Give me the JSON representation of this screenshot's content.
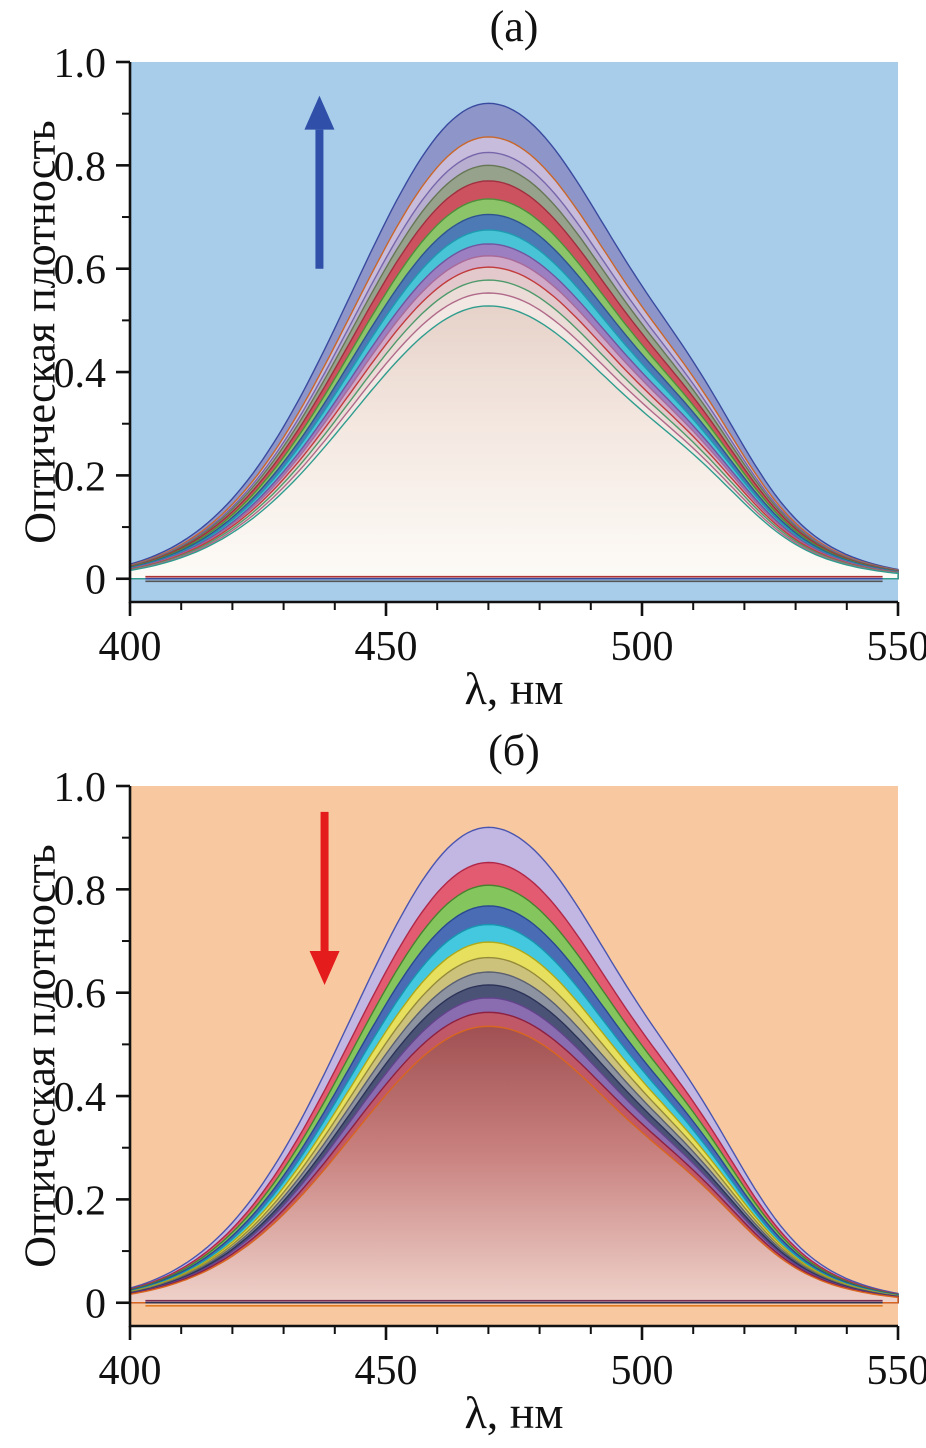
{
  "figure": {
    "description": "Two absorption spectra panels"
  },
  "charts": [
    {
      "id": "a",
      "title": "(а)",
      "ylabel": "Оптическая плотность",
      "xlabel": "λ, нм",
      "plot_bg": "#a7cdeb",
      "inner_gradient": {
        "top": "#e6d2c9",
        "mid": "#f4e8e1",
        "bottom": "#fdfbf7"
      },
      "arrow": {
        "direction": "up",
        "color": "#2f4fa8",
        "x_nm": 437,
        "from_od": 0.6,
        "to_od": 0.935
      },
      "axes": {
        "xlim": [
          400,
          550
        ],
        "ylim": [
          -0.045,
          1.0
        ],
        "x_ticks": [
          {
            "v": 400,
            "label": "400"
          },
          {
            "v": 450,
            "label": "450"
          },
          {
            "v": 500,
            "label": "500"
          },
          {
            "v": 550,
            "label": "550"
          }
        ],
        "y_ticks": [
          {
            "v": 0,
            "label": "0"
          },
          {
            "v": 0.2,
            "label": "0.2"
          },
          {
            "v": 0.4,
            "label": "0.4"
          },
          {
            "v": 0.6,
            "label": "0.6"
          },
          {
            "v": 0.8,
            "label": "0.8"
          },
          {
            "v": 1.0,
            "label": "1.0"
          }
        ],
        "x_minor_step": 10,
        "y_minor_step": 0.1
      },
      "chart_data": {
        "type": "line",
        "x_unit": "нм",
        "xlabel": "λ, нм",
        "ylabel": "Оптическая плотность",
        "peak_nm": 470,
        "shoulder_nm": 512,
        "trend": "absorbance increasing (upward arrow)",
        "series": [
          {
            "name": "spectrum-01",
            "peak_od": 0.92,
            "stroke": "#3a4a9f",
            "fill": "#8e96c9"
          },
          {
            "name": "spectrum-02",
            "peak_od": 0.855,
            "stroke": "#c9662a",
            "fill": "#c7bcdc"
          },
          {
            "name": "spectrum-03",
            "peak_od": 0.825,
            "stroke": "#7766aa",
            "fill": "#b7aed0"
          },
          {
            "name": "spectrum-04",
            "peak_od": 0.8,
            "stroke": "#667755",
            "fill": "#96a28c"
          },
          {
            "name": "spectrum-05",
            "peak_od": 0.77,
            "stroke": "#a03040",
            "fill": "#cc5260"
          },
          {
            "name": "spectrum-06",
            "peak_od": 0.735,
            "stroke": "#4e8f3a",
            "fill": "#8cc46a"
          },
          {
            "name": "spectrum-07",
            "peak_od": 0.705,
            "stroke": "#2f5590",
            "fill": "#4d79b4"
          },
          {
            "name": "spectrum-08",
            "peak_od": 0.675,
            "stroke": "#1f9bb1",
            "fill": "#49c4d6"
          },
          {
            "name": "spectrum-09",
            "peak_od": 0.648,
            "stroke": "#7055a0",
            "fill": "#9b7fc0"
          },
          {
            "name": "spectrum-10",
            "peak_od": 0.625,
            "stroke": "#a86a98",
            "fill": "#d0a8c8"
          },
          {
            "name": "spectrum-11",
            "peak_od": 0.603,
            "stroke": "#c23b3b",
            "fill": "#e3c9cb"
          },
          {
            "name": "spectrum-12",
            "peak_od": 0.578,
            "stroke": "#4e9a6a",
            "fill": "#ecdcd8"
          },
          {
            "name": "spectrum-13",
            "peak_od": 0.553,
            "stroke": "#b06a8a",
            "fill": "#f2e7e2"
          },
          {
            "name": "spectrum-14",
            "peak_od": 0.528,
            "stroke": "#2f9d8e",
            "fill": "gradient"
          }
        ],
        "zero_lines": [
          {
            "od": 0.004,
            "color": "#b03333"
          },
          {
            "od": 0.0,
            "color": "#3a4a9f"
          },
          {
            "od": -0.005,
            "color": "#555555"
          }
        ]
      }
    },
    {
      "id": "b",
      "title": "(б)",
      "ylabel": "Оптическая плотность",
      "xlabel": "λ, нм",
      "plot_bg": "#f8c9a0",
      "inner_gradient": {
        "top": "#a05052",
        "mid": "#c8807e",
        "bottom": "#efd2ca"
      },
      "arrow": {
        "direction": "down",
        "color": "#e41c1c",
        "x_nm": 438,
        "from_od": 0.95,
        "to_od": 0.615
      },
      "axes": {
        "xlim": [
          400,
          550
        ],
        "ylim": [
          -0.045,
          1.0
        ],
        "x_ticks": [
          {
            "v": 400,
            "label": "400"
          },
          {
            "v": 450,
            "label": "450"
          },
          {
            "v": 500,
            "label": "500"
          },
          {
            "v": 550,
            "label": "550"
          }
        ],
        "y_ticks": [
          {
            "v": 0,
            "label": "0"
          },
          {
            "v": 0.2,
            "label": "0.2"
          },
          {
            "v": 0.4,
            "label": "0.4"
          },
          {
            "v": 0.6,
            "label": "0.6"
          },
          {
            "v": 0.8,
            "label": "0.8"
          },
          {
            "v": 1.0,
            "label": "1.0"
          }
        ],
        "x_minor_step": 10,
        "y_minor_step": 0.1
      },
      "chart_data": {
        "type": "line",
        "x_unit": "нм",
        "xlabel": "λ, нм",
        "ylabel": "Оптическая плотность",
        "peak_nm": 470,
        "shoulder_nm": 512,
        "trend": "absorbance decreasing (downward arrow)",
        "series": [
          {
            "name": "spectrum-01",
            "peak_od": 0.92,
            "stroke": "#4a55b0",
            "fill": "#c2b6e2"
          },
          {
            "name": "spectrum-02",
            "peak_od": 0.852,
            "stroke": "#b02848",
            "fill": "#e25b70"
          },
          {
            "name": "spectrum-03",
            "peak_od": 0.808,
            "stroke": "#47822f",
            "fill": "#85c55e"
          },
          {
            "name": "spectrum-04",
            "peak_od": 0.768,
            "stroke": "#2a4890",
            "fill": "#4a6cb5"
          },
          {
            "name": "spectrum-05",
            "peak_od": 0.732,
            "stroke": "#1795ae",
            "fill": "#44c8e0"
          },
          {
            "name": "spectrum-06",
            "peak_od": 0.698,
            "stroke": "#b0a818",
            "fill": "#e6e05e"
          },
          {
            "name": "spectrum-07",
            "peak_od": 0.668,
            "stroke": "#948a3a",
            "fill": "#cdc27c"
          },
          {
            "name": "spectrum-08",
            "peak_od": 0.64,
            "stroke": "#5a6070",
            "fill": "#8d93a0"
          },
          {
            "name": "spectrum-09",
            "peak_od": 0.615,
            "stroke": "#2c3358",
            "fill": "#4a5375"
          },
          {
            "name": "spectrum-10",
            "peak_od": 0.59,
            "stroke": "#62438c",
            "fill": "#8a6cb0"
          },
          {
            "name": "spectrum-11",
            "peak_od": 0.562,
            "stroke": "#8e2040",
            "fill": "#c05868"
          },
          {
            "name": "spectrum-12",
            "peak_od": 0.535,
            "stroke": "#d8661f",
            "fill": "gradient"
          }
        ],
        "zero_lines": [
          {
            "od": 0.004,
            "color": "#7a2c50"
          },
          {
            "od": 0.0,
            "color": "#333355"
          },
          {
            "od": -0.006,
            "color": "#e07a20"
          }
        ]
      }
    }
  ]
}
